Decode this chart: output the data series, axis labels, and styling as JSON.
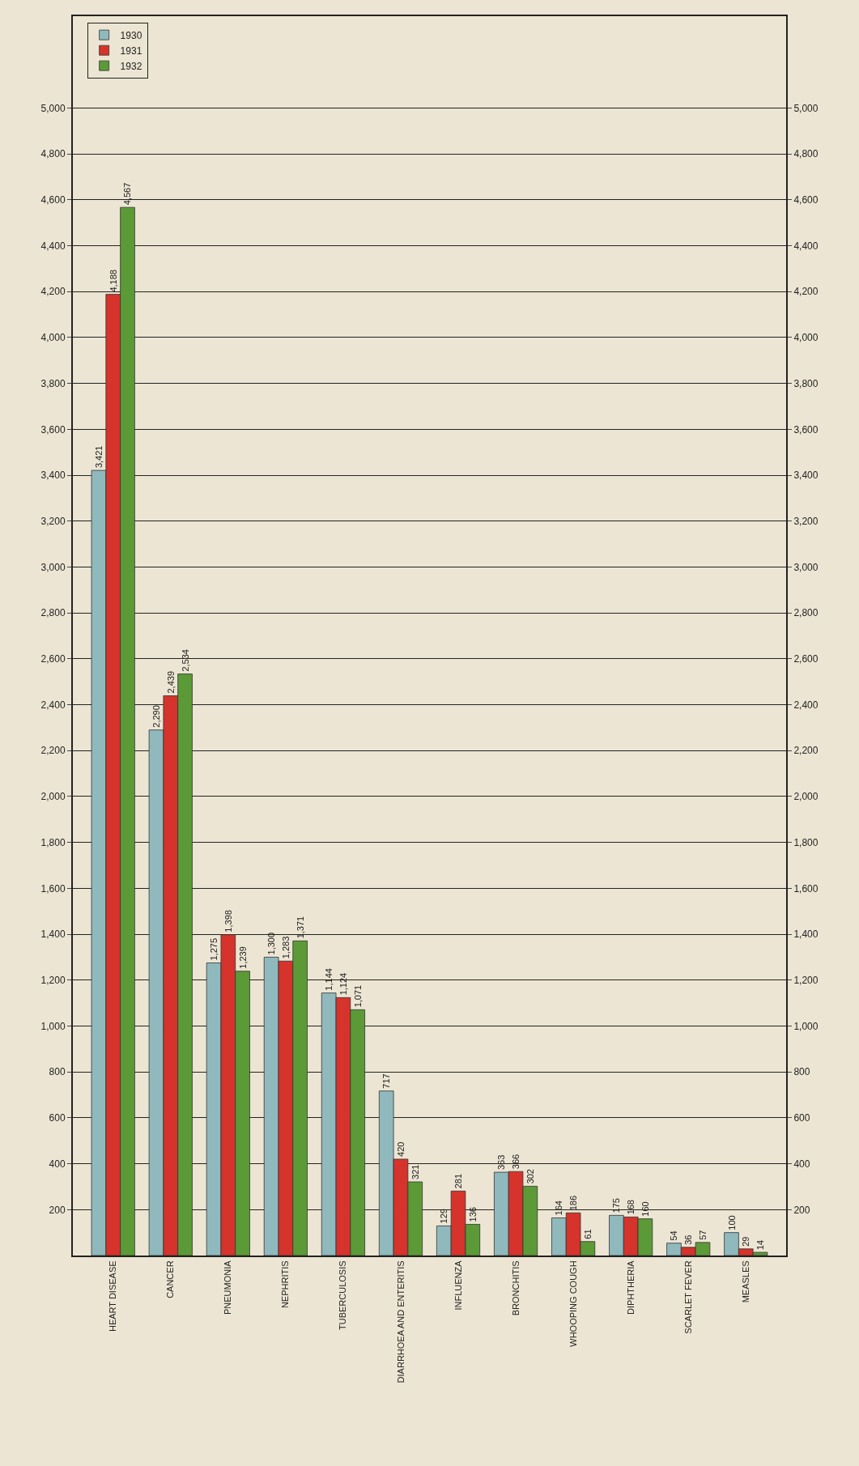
{
  "chart_data": {
    "type": "bar",
    "categories": [
      "HEART DISEASE",
      "CANCER",
      "PNEUMONIA",
      "NEPHRITIS",
      "TUBERCULOSIS",
      "DIARRHOEA AND ENTERITIS",
      "INFLUENZA",
      "BRONCHITIS",
      "WHOOPING COUGH",
      "DIPHTHERIA",
      "SCARLET FEVER",
      "MEASLES"
    ],
    "series": [
      {
        "name": "1930",
        "color": "#8fb9bd",
        "values": [
          3421,
          2290,
          1275,
          1300,
          1144,
          717,
          129,
          363,
          164,
          175,
          54,
          100
        ],
        "value_labels": [
          "3,421",
          "2,290",
          "1,275",
          "1,300",
          "1,144",
          "717",
          "129",
          "363",
          "164",
          "175",
          "54",
          "100"
        ]
      },
      {
        "name": "1931",
        "color": "#d5332b",
        "values": [
          4188,
          2439,
          1398,
          1283,
          1124,
          420,
          281,
          366,
          186,
          168,
          36,
          29
        ],
        "value_labels": [
          "4,188",
          "2,439",
          "1,398",
          "1,283",
          "1,124",
          "420",
          "281",
          "366",
          "186",
          "168",
          "36",
          "29"
        ]
      },
      {
        "name": "1932",
        "color": "#5b9a36",
        "values": [
          4567,
          2534,
          1239,
          1371,
          1071,
          321,
          136,
          302,
          61,
          160,
          57,
          14
        ],
        "value_labels": [
          "4,567",
          "2,534",
          "1,239",
          "1,371",
          "1,071",
          "321",
          "136",
          "302",
          "61",
          "160",
          "57",
          "14"
        ]
      }
    ],
    "ylim": [
      0,
      5400
    ],
    "yticks": [
      200,
      400,
      600,
      800,
      {
        "value": 1000,
        "label": "1,000"
      },
      {
        "value": 1200,
        "label": "1,200"
      },
      {
        "value": 1400,
        "label": "1,400"
      },
      {
        "value": 1600,
        "label": "1,600"
      },
      {
        "value": 1800,
        "label": "1,800"
      },
      {
        "value": 2000,
        "label": "2,000"
      },
      {
        "value": 2200,
        "label": "2,200"
      },
      {
        "value": 2400,
        "label": "2,400"
      },
      {
        "value": 2600,
        "label": "2,600"
      },
      {
        "value": 2800,
        "label": "2,800"
      },
      {
        "value": 3000,
        "label": "3,000"
      },
      {
        "value": 3200,
        "label": "3,200"
      },
      {
        "value": 3400,
        "label": "3,400"
      },
      {
        "value": 3600,
        "label": "3,600"
      },
      {
        "value": 3800,
        "label": "3,800"
      },
      {
        "value": 4000,
        "label": "4,000"
      },
      {
        "value": 4200,
        "label": "4,200"
      },
      {
        "value": 4400,
        "label": "4,400"
      },
      {
        "value": 4600,
        "label": "4,600"
      },
      {
        "value": 4800,
        "label": "4,800"
      },
      {
        "value": 5000,
        "label": "5,000"
      }
    ],
    "y2lim": [
      0,
      5400
    ],
    "y2ticks": [
      200,
      400,
      600,
      800,
      {
        "value": 1000,
        "label": "1,000"
      },
      {
        "value": 1200,
        "label": "1,200"
      },
      {
        "value": 1400,
        "label": "1,400"
      },
      {
        "value": 1600,
        "label": "1,600"
      },
      {
        "value": 1800,
        "label": "1,800"
      },
      {
        "value": 2000,
        "label": "2,000"
      },
      {
        "value": 2200,
        "label": "2,200"
      },
      {
        "value": 2400,
        "label": "2,400"
      },
      {
        "value": 2600,
        "label": "2,600"
      },
      {
        "value": 2800,
        "label": "2,800"
      },
      {
        "value": 3000,
        "label": "3,000"
      },
      {
        "value": 3200,
        "label": "3,200"
      },
      {
        "value": 3400,
        "label": "3,400"
      },
      {
        "value": 3600,
        "label": "3,600"
      },
      {
        "value": 3800,
        "label": "3,800"
      },
      {
        "value": 4000,
        "label": "4,000"
      },
      {
        "value": 4200,
        "label": "4,200"
      },
      {
        "value": 4400,
        "label": "4,400"
      },
      {
        "value": 4600,
        "label": "4,600"
      },
      {
        "value": 4800,
        "label": "4,800"
      },
      {
        "value": 5000,
        "label": "5,000"
      }
    ],
    "grid": "y",
    "legend": "top left"
  }
}
